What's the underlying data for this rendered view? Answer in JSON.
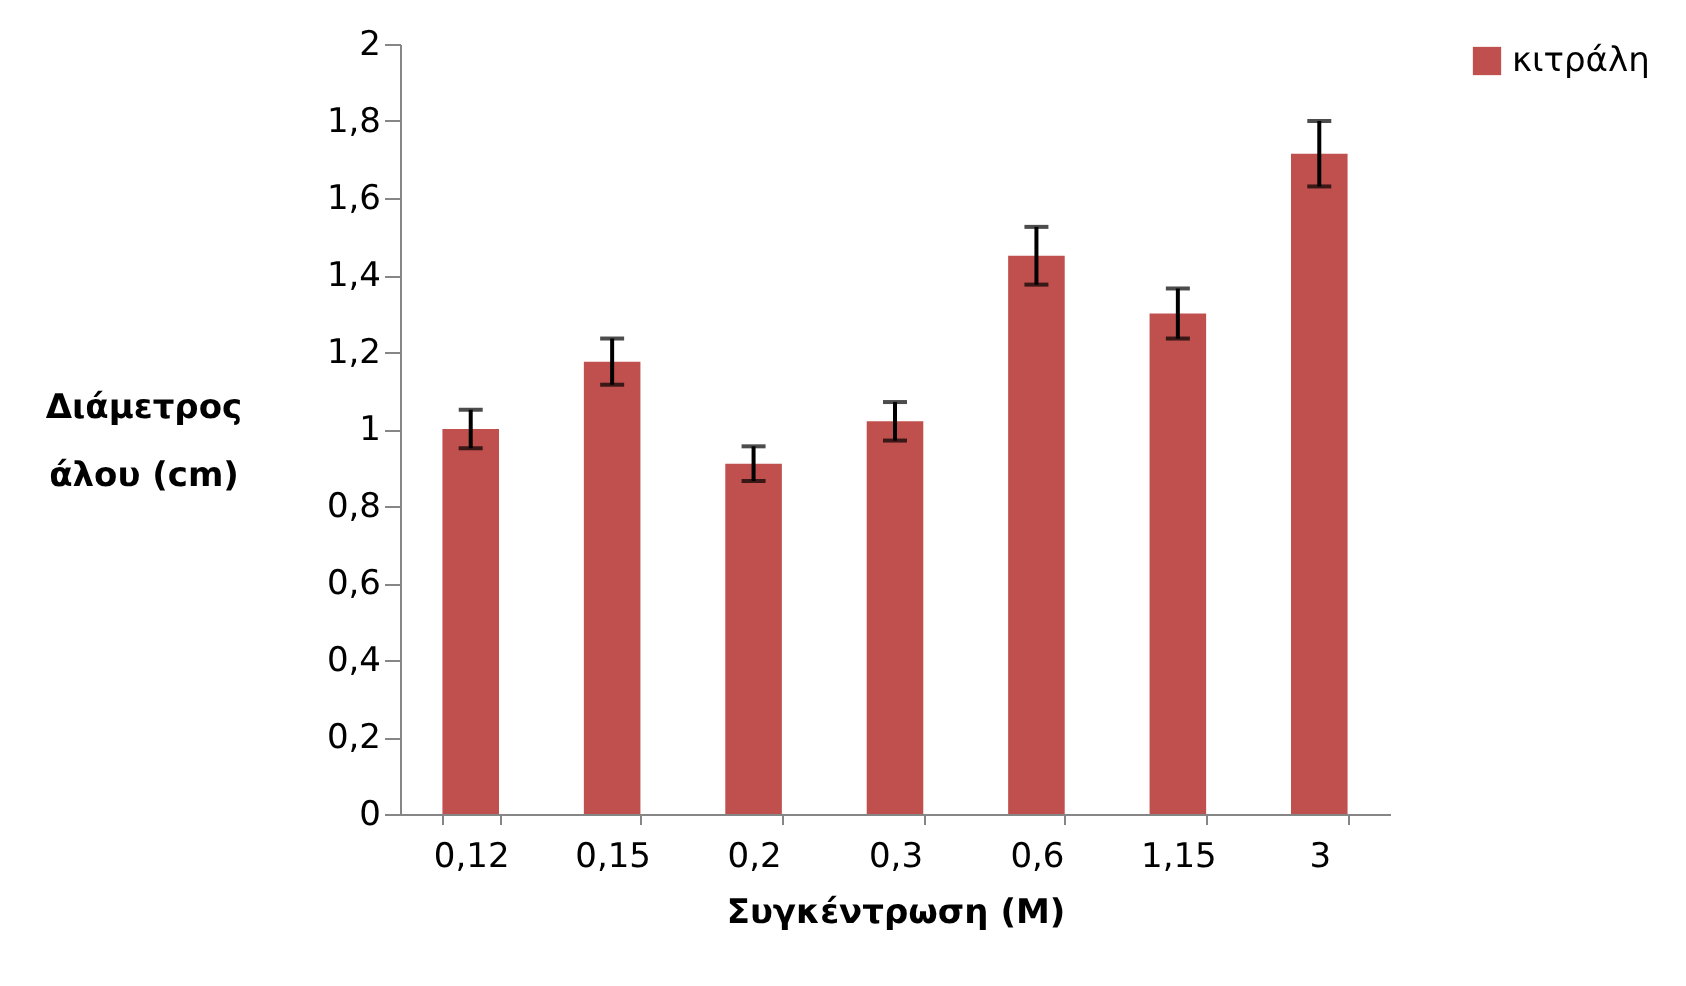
{
  "chart_data": {
    "type": "bar",
    "xlabel": "Συγκέντρωση (M)",
    "ylabel": "Διάμετρος άλου (cm)",
    "categories": [
      "0,12",
      "0,15",
      "0,2",
      "0,3",
      "0,6",
      "1,15",
      "3"
    ],
    "series": [
      {
        "name": "κιτράλη",
        "color": "#c0504d",
        "values": [
          1.0,
          1.175,
          0.91,
          1.02,
          1.45,
          1.3,
          1.715
        ],
        "errors": [
          0.05,
          0.06,
          0.045,
          0.05,
          0.075,
          0.065,
          0.085
        ]
      }
    ],
    "ylim": [
      0,
      2
    ],
    "yticks": [
      0,
      {
        "value": 0.2,
        "label": "0,2"
      },
      {
        "value": 0.4,
        "label": "0,4"
      },
      {
        "value": 0.6,
        "label": "0,6"
      },
      {
        "value": 0.8,
        "label": "0,8"
      },
      1,
      {
        "value": 1.2,
        "label": "1,2"
      },
      {
        "value": 1.4,
        "label": "1,4"
      },
      {
        "value": 1.6,
        "label": "1,6"
      },
      {
        "value": 1.8,
        "label": "1,8"
      },
      2
    ],
    "grid": false,
    "legend": "right"
  }
}
